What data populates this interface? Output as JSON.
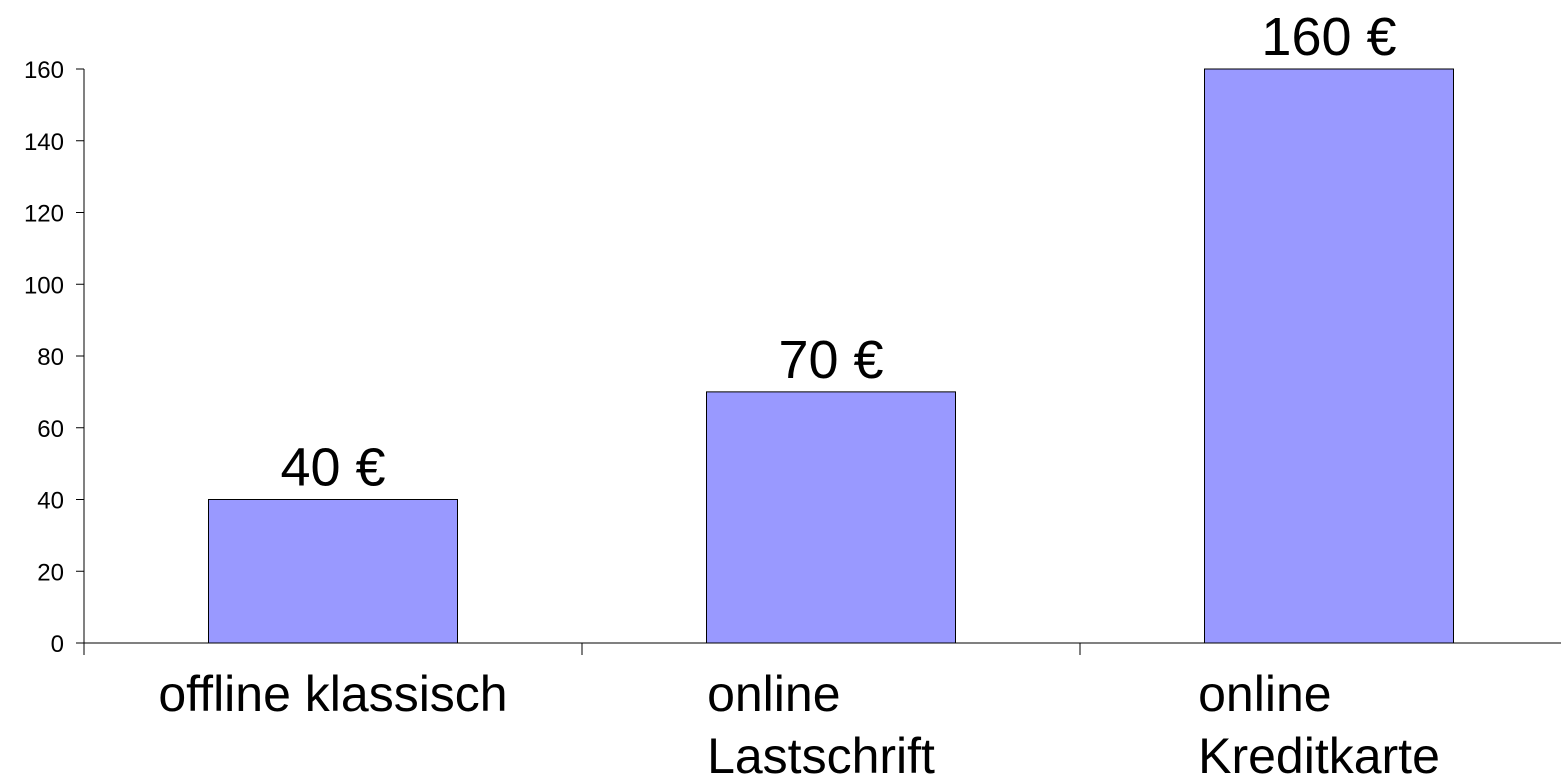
{
  "chart_data": {
    "type": "bar",
    "categories": [
      "offline klassisch",
      "online\nLastschrift",
      "online\nKreditkarte"
    ],
    "values": [
      40,
      70,
      160
    ],
    "value_labels": [
      "40 €",
      "70 €",
      "160 €"
    ],
    "color": "#9999ff",
    "ylim": [
      0,
      160
    ],
    "yticks": [
      0,
      20,
      40,
      60,
      80,
      100,
      120,
      140,
      160
    ],
    "grid": false
  }
}
